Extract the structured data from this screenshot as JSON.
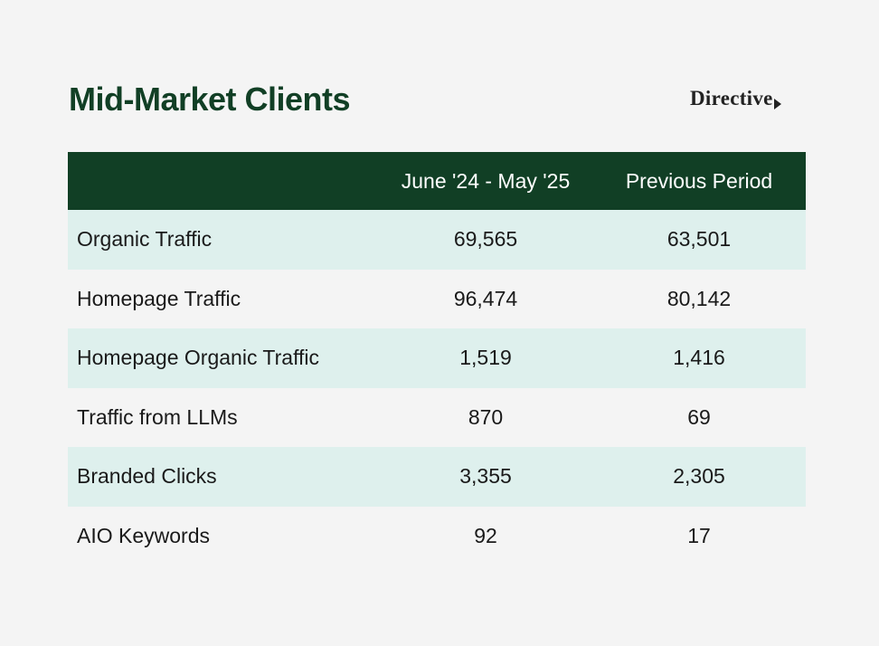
{
  "title": "Mid-Market Clients",
  "brand": {
    "name": "Directive",
    "mark": "arrow-mark-icon"
  },
  "colors": {
    "background": "#f4f4f4",
    "header_bg": "#113f25",
    "title": "#113f25",
    "row_shade": "#def0ed"
  },
  "table": {
    "headers": [
      "",
      "June '24 - May '25",
      "Previous Period"
    ],
    "rows": [
      {
        "label": "Organic Traffic",
        "current": "69,565",
        "previous": "63,501"
      },
      {
        "label": "Homepage Traffic",
        "current": "96,474",
        "previous": "80,142"
      },
      {
        "label": "Homepage Organic Traffic",
        "current": "1,519",
        "previous": "1,416"
      },
      {
        "label": "Traffic from LLMs",
        "current": "870",
        "previous": "69"
      },
      {
        "label": "Branded Clicks",
        "current": "3,355",
        "previous": "2,305"
      },
      {
        "label": "AIO Keywords",
        "current": "92",
        "previous": "17"
      }
    ]
  }
}
